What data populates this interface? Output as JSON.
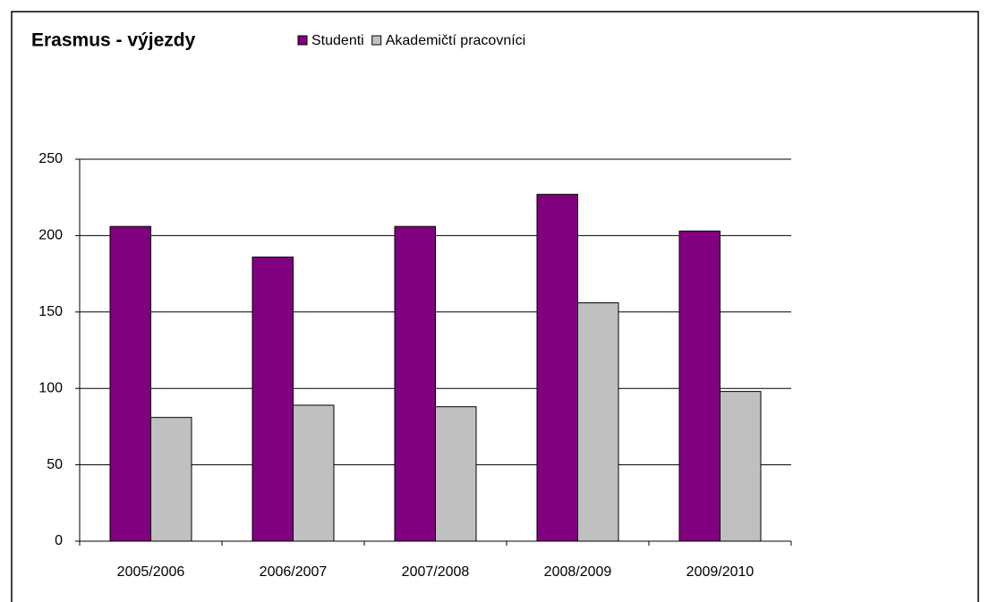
{
  "chart_data": {
    "type": "bar",
    "title": "Erasmus - výjezdy",
    "categories": [
      "2005/2006",
      "2006/2007",
      "2007/2008",
      "2008/2009",
      "2009/2010"
    ],
    "series": [
      {
        "name": "Studenti",
        "color": "#800080",
        "values": [
          206,
          186,
          206,
          227,
          203
        ]
      },
      {
        "name": "Akademičtí pracovníci",
        "color": "#c0c0c0",
        "values": [
          81,
          89,
          88,
          156,
          98
        ]
      }
    ],
    "ylim": [
      0,
      250
    ],
    "yticks": [
      0,
      50,
      100,
      150,
      200,
      250
    ],
    "grid": true,
    "legend": "top"
  }
}
